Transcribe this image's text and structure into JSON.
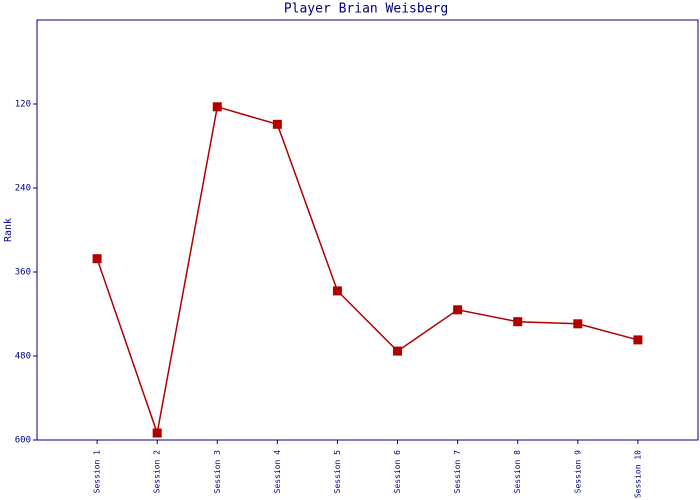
{
  "chart_data": {
    "type": "line",
    "title": "Player Brian Weisberg",
    "y_label": "Rank",
    "categories": [
      "Session 1",
      "Session 2",
      "Session 3",
      "Session 4",
      "Session 5",
      "Session 6",
      "Session 7",
      "Session 8",
      "Session 9",
      "Session 10"
    ],
    "series": [
      {
        "name": "Rank",
        "color": "#b00000",
        "values": [
          341,
          590,
          124,
          149,
          387,
          473,
          414,
          431,
          434,
          457
        ]
      }
    ],
    "ylim": [
      0,
      600
    ],
    "y_inverted": true,
    "yticks": [
      120,
      240,
      360,
      480,
      600
    ]
  }
}
